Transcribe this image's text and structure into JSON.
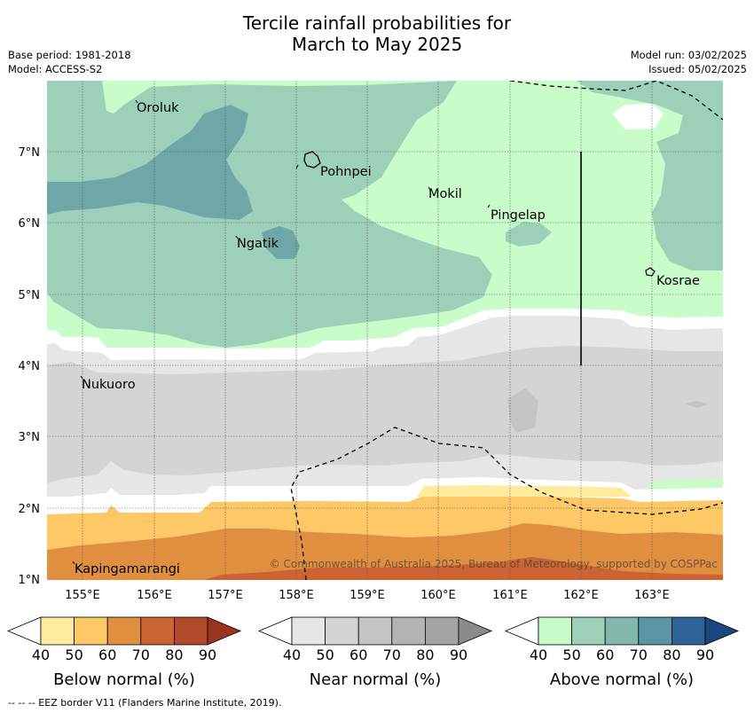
{
  "title_line1": "Tercile rainfall probabilities for",
  "title_line2": "March to May 2025",
  "meta": {
    "base_period": "Base period: 1981-2018",
    "model": "Model: ACCESS-S2",
    "model_run": "Model run: 03/02/2025",
    "issued": "Issued: 05/02/2025"
  },
  "map": {
    "lon_ticks": [
      "155°E",
      "156°E",
      "157°E",
      "158°E",
      "159°E",
      "160°E",
      "161°E",
      "162°E",
      "163°E"
    ],
    "lat_ticks": [
      "7°N",
      "6°N",
      "5°N",
      "4°N",
      "3°N",
      "2°N",
      "1°N"
    ],
    "places": [
      "Oroluk",
      "Pohnpei",
      "Mokil",
      "Pingelap",
      "Ngatik",
      "Kosrae",
      "Nukuoro",
      "Kapingamarangi"
    ],
    "copyright": "© Commonwealth of Australia 2025, Bureau of Meteorology, supported by COSPPac"
  },
  "colorbars": {
    "below": {
      "label": "Below normal (%)",
      "ticks": [
        "40",
        "50",
        "60",
        "70",
        "80",
        "90"
      ],
      "colors": [
        "#ffffff",
        "#feeb9d",
        "#fdc865",
        "#e08f41",
        "#cb6332",
        "#b14a2a",
        "#99341f"
      ]
    },
    "near": {
      "label": "Near normal (%)",
      "ticks": [
        "40",
        "50",
        "60",
        "70",
        "80",
        "90"
      ],
      "colors": [
        "#ffffff",
        "#e6e6e6",
        "#d4d4d4",
        "#c4c4c4",
        "#b3b3b3",
        "#a3a3a3",
        "#8a8a8a"
      ]
    },
    "above": {
      "label": "Above normal (%)",
      "ticks": [
        "40",
        "50",
        "60",
        "70",
        "80",
        "90"
      ],
      "colors": [
        "#ffffff",
        "#c8fcc9",
        "#9dd0b8",
        "#82b8ac",
        "#5c95a3",
        "#2f6397",
        "#1a4780"
      ]
    }
  },
  "footer": "--  --  -- EEZ border V11 (Flanders Marine Institute, 2019)."
}
